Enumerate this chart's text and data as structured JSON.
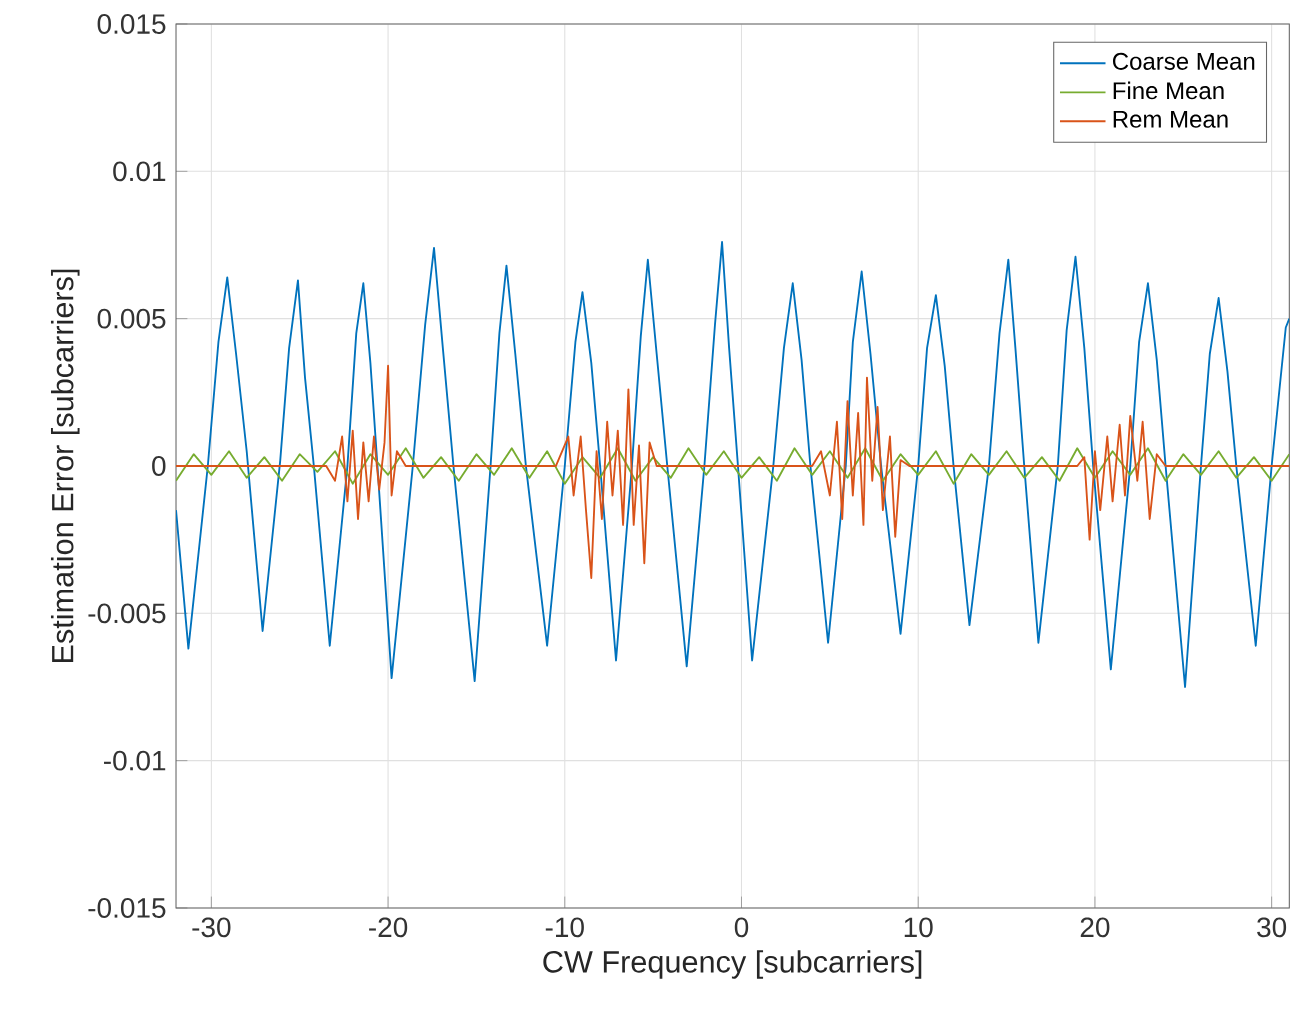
{
  "chart_data": {
    "type": "line",
    "xlabel": "CW Frequency [subcarriers]",
    "ylabel": "Estimation Error [subcarriers]",
    "xlim": [
      -32,
      31
    ],
    "xticks": [
      -30,
      -20,
      -10,
      0,
      10,
      20,
      30
    ],
    "ylim": [
      -0.015,
      0.015
    ],
    "yticks": [
      -0.015,
      -0.01,
      -0.005,
      0,
      0.005,
      0.01,
      0.015
    ],
    "grid": true,
    "legend": "top right",
    "series": [
      {
        "name": "Coarse Mean",
        "color": "#0072bd",
        "x": [
          -32,
          -31.3,
          -30.2,
          -29.6,
          -29.1,
          -28.6,
          -28.0,
          -27.1,
          -26.1,
          -25.6,
          -25.1,
          -24.7,
          -24.2,
          -23.3,
          -22.3,
          -21.8,
          -21.4,
          -21.0,
          -20.6,
          -19.8,
          -18.6,
          -17.9,
          -17.4,
          -16.9,
          -16.3,
          -15.1,
          -14.2,
          -13.7,
          -13.3,
          -12.8,
          -12.2,
          -11.0,
          -10.0,
          -9.4,
          -9.0,
          -8.5,
          -8.0,
          -7.1,
          -6.2,
          -5.7,
          -5.3,
          -4.8,
          -4.2,
          -3.1,
          -2.1,
          -1.5,
          -1.1,
          -0.7,
          -0.2,
          0.6,
          1.8,
          2.4,
          2.9,
          3.4,
          3.9,
          4.9,
          5.9,
          6.3,
          6.8,
          7.3,
          7.9,
          9.0,
          10.0,
          10.5,
          11.0,
          11.5,
          12.0,
          12.9,
          14.0,
          14.6,
          15.1,
          15.5,
          16.0,
          16.8,
          17.9,
          18.4,
          18.9,
          19.4,
          19.9,
          20.9,
          22.0,
          22.5,
          23.0,
          23.5,
          24.0,
          25.1,
          26.0,
          26.5,
          27.0,
          27.5,
          28.0,
          29.1,
          30.0,
          30.8,
          31
        ],
        "values": [
          -0.0015,
          -0.0062,
          0.0,
          0.0042,
          0.0064,
          0.0038,
          0.0005,
          -0.0056,
          0.0002,
          0.004,
          0.0063,
          0.003,
          0.0,
          -0.0061,
          0.0,
          0.0045,
          0.0062,
          0.0035,
          0.0,
          -0.0072,
          0.0,
          0.0048,
          0.0074,
          0.004,
          0.0,
          -0.0073,
          0.0,
          0.0045,
          0.0068,
          0.0038,
          0.0,
          -0.0061,
          0.0,
          0.0042,
          0.0059,
          0.0035,
          0.0,
          -0.0066,
          0.0,
          0.0044,
          0.007,
          0.0038,
          0.0,
          -0.0068,
          0.0,
          0.0048,
          0.0076,
          0.004,
          0.0,
          -0.0066,
          0.0,
          0.004,
          0.0062,
          0.0036,
          0.0,
          -0.006,
          0.0,
          0.0042,
          0.0066,
          0.0038,
          0.0,
          -0.0057,
          0.0,
          0.004,
          0.0058,
          0.0034,
          0.0,
          -0.0054,
          0.0,
          0.0045,
          0.007,
          0.004,
          0.0,
          -0.006,
          0.0,
          0.0046,
          0.0071,
          0.004,
          0.0,
          -0.0069,
          0.0,
          0.0042,
          0.0062,
          0.0036,
          0.0,
          -0.0075,
          0.0,
          0.0038,
          0.0057,
          0.0032,
          0.0,
          -0.0061,
          0.0,
          0.0047,
          0.005
        ]
      },
      {
        "name": "Fine Mean",
        "color": "#77ac30",
        "x": [
          -32,
          -31,
          -30,
          -29,
          -28,
          -27,
          -26,
          -25,
          -24,
          -23,
          -22,
          -21,
          -20,
          -19,
          -18,
          -17,
          -16,
          -15,
          -14,
          -13,
          -12,
          -11,
          -10,
          -9,
          -8,
          -7,
          -6,
          -5,
          -4,
          -3,
          -2,
          -1,
          0,
          1,
          2,
          3,
          4,
          5,
          6,
          7,
          8,
          9,
          10,
          11,
          12,
          13,
          14,
          15,
          16,
          17,
          18,
          19,
          20,
          21,
          22,
          23,
          24,
          25,
          26,
          27,
          28,
          29,
          30,
          31
        ],
        "values": [
          -0.0005,
          0.0004,
          -0.0003,
          0.0005,
          -0.0004,
          0.0003,
          -0.0005,
          0.0004,
          -0.0002,
          0.0005,
          -0.0006,
          0.0004,
          -0.0003,
          0.0006,
          -0.0004,
          0.0003,
          -0.0005,
          0.0004,
          -0.0003,
          0.0006,
          -0.0004,
          0.0005,
          -0.0006,
          0.0003,
          -0.0004,
          0.0006,
          -0.0005,
          0.0003,
          -0.0004,
          0.0006,
          -0.0003,
          0.0005,
          -0.0004,
          0.0003,
          -0.0005,
          0.0006,
          -0.0003,
          0.0005,
          -0.0004,
          0.0006,
          -0.0005,
          0.0004,
          -0.0003,
          0.0005,
          -0.0006,
          0.0004,
          -0.0003,
          0.0005,
          -0.0004,
          0.0003,
          -0.0005,
          0.0006,
          -0.0004,
          0.0005,
          -0.0003,
          0.0006,
          -0.0005,
          0.0004,
          -0.0003,
          0.0005,
          -0.0004,
          0.0003,
          -0.0005,
          0.0004
        ]
      },
      {
        "name": "Rem Mean",
        "color": "#d95319",
        "x": [
          -32,
          -23.5,
          -23.0,
          -22.6,
          -22.3,
          -22.0,
          -21.7,
          -21.4,
          -21.1,
          -20.8,
          -20.5,
          -20.2,
          -20.0,
          -19.8,
          -19.5,
          -19.0,
          -10.5,
          -9.8,
          -9.5,
          -9.1,
          -8.8,
          -8.5,
          -8.2,
          -7.9,
          -7.6,
          -7.3,
          -7.0,
          -6.7,
          -6.4,
          -6.1,
          -5.8,
          -5.5,
          -5.2,
          -4.8,
          4.0,
          4.5,
          5.0,
          5.4,
          5.7,
          6.0,
          6.3,
          6.6,
          6.9,
          7.1,
          7.4,
          7.7,
          8.0,
          8.4,
          8.7,
          9.0,
          9.5,
          19.0,
          19.4,
          19.7,
          20.0,
          20.3,
          20.7,
          21.0,
          21.4,
          21.7,
          22.0,
          22.4,
          22.7,
          23.1,
          23.5,
          24.0,
          31
        ],
        "values": [
          0,
          0,
          -0.0005,
          0.001,
          -0.0012,
          0.0012,
          -0.0018,
          0.0008,
          -0.0012,
          0.001,
          -0.0008,
          0.0008,
          0.0034,
          -0.001,
          0.0005,
          0,
          0,
          0.001,
          -0.001,
          0.001,
          -0.0015,
          -0.0038,
          0.0005,
          -0.0018,
          0.0015,
          -0.001,
          0.0012,
          -0.002,
          0.0026,
          -0.002,
          0.0007,
          -0.0033,
          0.0008,
          0,
          0,
          0.0005,
          -0.001,
          0.0015,
          -0.0018,
          0.0022,
          -0.001,
          0.0018,
          -0.002,
          0.003,
          -0.0005,
          0.002,
          -0.0015,
          0.001,
          -0.0024,
          0.0002,
          0,
          0,
          0.0003,
          -0.0025,
          0.0005,
          -0.0015,
          0.001,
          -0.0012,
          0.0014,
          -0.001,
          0.0017,
          -0.0005,
          0.0015,
          -0.0018,
          0.0004,
          0,
          0
        ]
      }
    ]
  }
}
